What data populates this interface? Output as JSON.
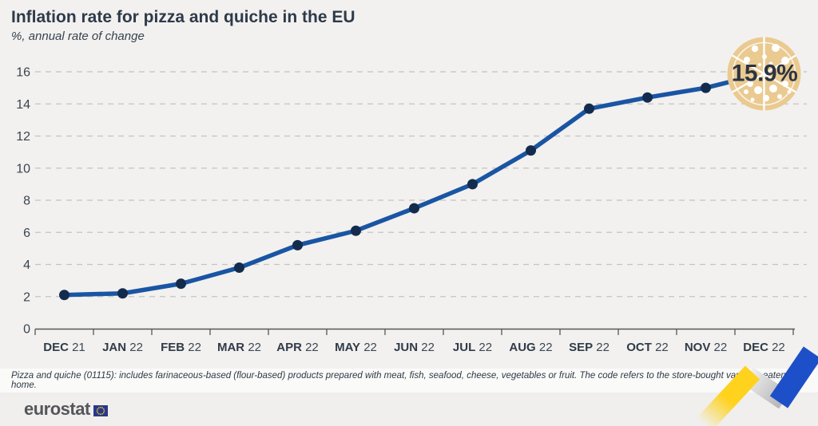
{
  "header": {
    "title": "Inflation rate for pizza and quiche in the EU",
    "subtitle": "%, annual rate of change"
  },
  "chart_data": {
    "type": "line",
    "title": "Inflation rate for pizza and quiche in the EU",
    "ylabel": "%, annual rate of change",
    "categories": [
      "DEC 21",
      "JAN 22",
      "FEB 22",
      "MAR 22",
      "APR 22",
      "MAY 22",
      "JUN 22",
      "JUL 22",
      "AUG 22",
      "SEP 22",
      "OCT 22",
      "NOV 22",
      "DEC 22"
    ],
    "values": [
      2.1,
      2.2,
      2.8,
      3.8,
      5.2,
      6.1,
      7.5,
      9.0,
      11.1,
      13.7,
      14.4,
      15.0,
      15.9
    ],
    "ylim": [
      0,
      16
    ],
    "yticks": [
      0,
      2,
      4,
      6,
      8,
      10,
      12,
      14,
      16
    ],
    "grid": "horizontal-dashed",
    "legend": "none",
    "line_color": "#1A55A3",
    "point_color": "#132C4E",
    "annotation": {
      "label": "15.9%",
      "icon": "pizza-icon"
    }
  },
  "footnote": "Pizza and quiche (01115): includes farinaceous-based (flour-based) products prepared with meat, fish, seafood, cheese, vegetables or fruit. The code refers to the store-bought varieties eaten at home.",
  "footer": {
    "logo_text": "eurostat"
  },
  "colors": {
    "background": "#F2F1EF",
    "note_band": "#FAFAF9",
    "footer_band": "#F0EFED",
    "gridline": "#C4C3C1",
    "axis": "#53575D",
    "title_text": "#2E3A4A",
    "pizza_fill": "#EACA90",
    "ribbon_yellow": "#FFD21E",
    "ribbon_gray": "#C9C9C9",
    "ribbon_blue": "#1D4FC8"
  }
}
